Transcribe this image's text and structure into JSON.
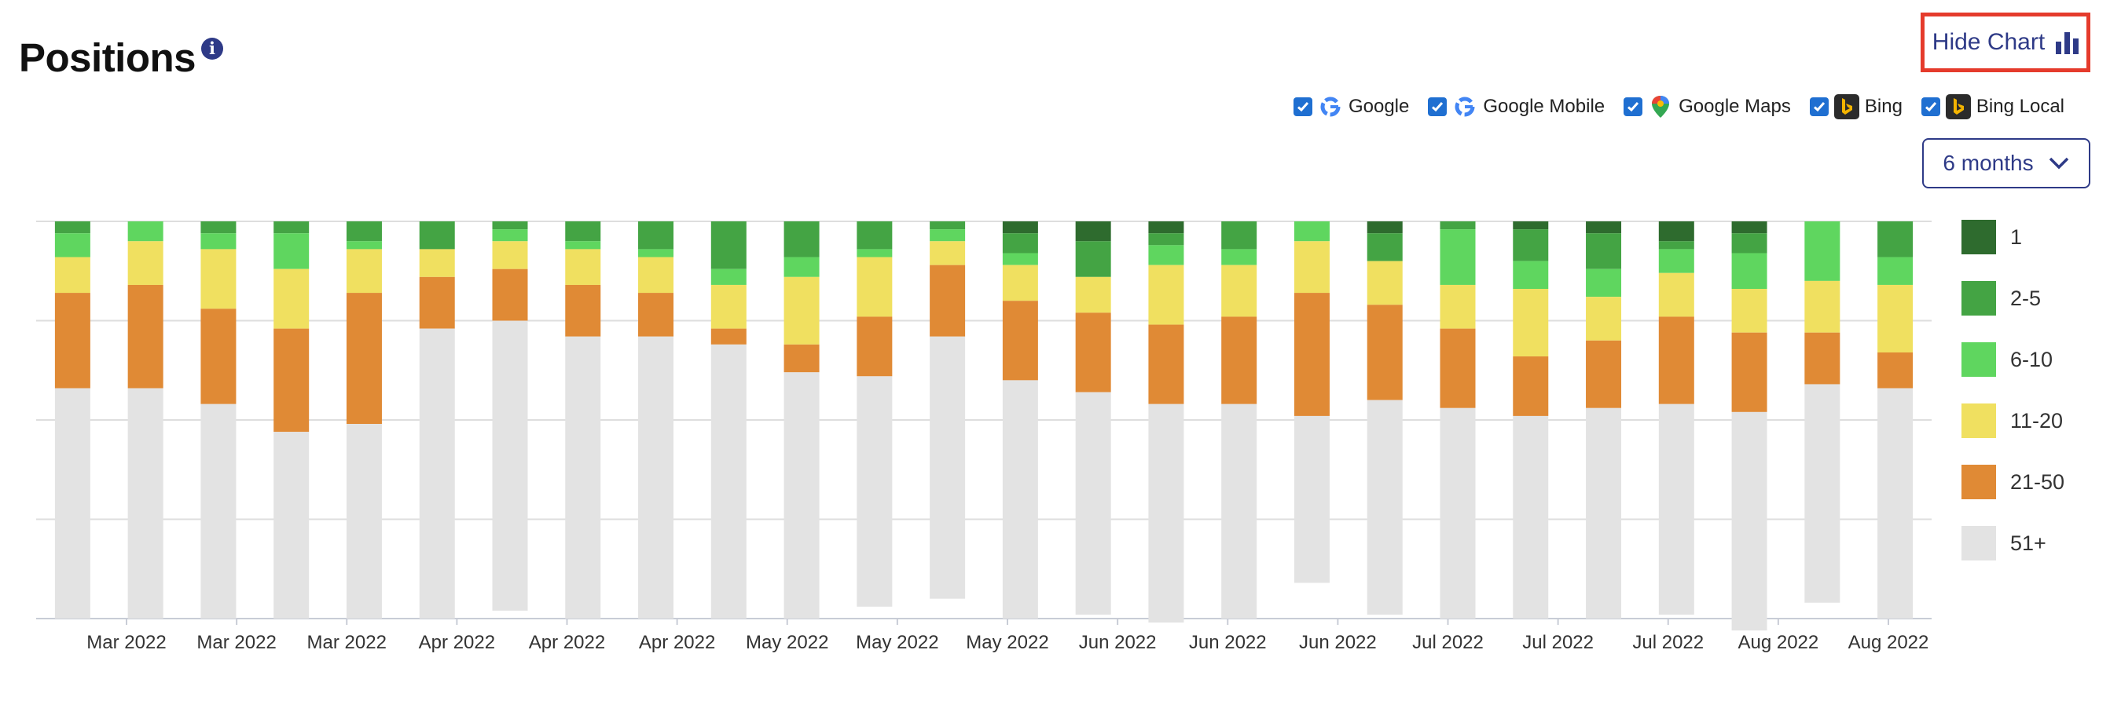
{
  "header": {
    "title": "Positions",
    "info_glyph": "i",
    "hide_chart_label": "Hide Chart"
  },
  "filters": [
    {
      "label": "Google",
      "checked": true,
      "icon": "google-icon"
    },
    {
      "label": "Google Mobile",
      "checked": true,
      "icon": "google-icon"
    },
    {
      "label": "Google Maps",
      "checked": true,
      "icon": "map-pin-icon"
    },
    {
      "label": "Bing",
      "checked": true,
      "icon": "bing-icon"
    },
    {
      "label": "Bing Local",
      "checked": true,
      "icon": "bing-icon"
    }
  ],
  "period": {
    "label": "6 months"
  },
  "colors": {
    "accent": "#2e3a87",
    "highlight": "#e53b2c",
    "checkbox": "#1f6fd1"
  },
  "chart_data": {
    "type": "bar",
    "stacked": true,
    "stack_mode": "percent",
    "ylim": [
      0,
      100
    ],
    "y_tick_labels_shown": false,
    "grid": true,
    "legend_position": "right",
    "x_tick_labels": [
      "Mar 2022",
      "Mar 2022",
      "Mar 2022",
      "Apr 2022",
      "Apr 2022",
      "Apr 2022",
      "May 2022",
      "May 2022",
      "May 2022",
      "Jun 2022",
      "Jun 2022",
      "Jun 2022",
      "Jul 2022",
      "Jul 2022",
      "Jul 2022",
      "Aug 2022",
      "Aug 2022"
    ],
    "bar_count": 26,
    "series": [
      {
        "name": "1",
        "color": "#2e6b2e",
        "values": [
          0,
          0,
          0,
          0,
          0,
          0,
          0,
          0,
          0,
          0,
          0,
          0,
          0,
          3,
          5,
          3,
          0,
          0,
          3,
          0,
          2,
          3,
          5,
          3,
          0,
          0
        ]
      },
      {
        "name": "2-5",
        "color": "#44a444",
        "values": [
          3,
          0,
          3,
          3,
          5,
          7,
          2,
          5,
          7,
          12,
          9,
          7,
          2,
          5,
          9,
          3,
          7,
          0,
          7,
          2,
          8,
          9,
          2,
          5,
          0,
          9
        ]
      },
      {
        "name": "6-10",
        "color": "#5fd65f",
        "values": [
          6,
          5,
          4,
          9,
          2,
          0,
          3,
          2,
          2,
          4,
          5,
          2,
          3,
          3,
          0,
          5,
          4,
          5,
          0,
          14,
          7,
          7,
          6,
          9,
          15,
          7
        ]
      },
      {
        "name": "11-20",
        "color": "#f0e060",
        "values": [
          9,
          11,
          15,
          15,
          11,
          7,
          7,
          9,
          9,
          11,
          17,
          15,
          6,
          9,
          9,
          15,
          13,
          13,
          11,
          11,
          17,
          11,
          11,
          11,
          13,
          17
        ]
      },
      {
        "name": "21-50",
        "color": "#e08a35",
        "values": [
          24,
          26,
          24,
          26,
          33,
          13,
          13,
          13,
          11,
          4,
          7,
          15,
          18,
          20,
          20,
          20,
          22,
          31,
          24,
          20,
          15,
          17,
          22,
          20,
          13,
          9
        ]
      },
      {
        "name": "51+",
        "color": "#e3e3e3",
        "values": [
          58,
          58,
          54,
          47,
          49,
          73,
          73,
          71,
          71,
          69,
          62,
          58,
          66,
          60,
          56,
          55,
          54,
          42,
          54,
          53,
          51,
          53,
          53,
          55,
          55,
          58
        ]
      }
    ]
  }
}
